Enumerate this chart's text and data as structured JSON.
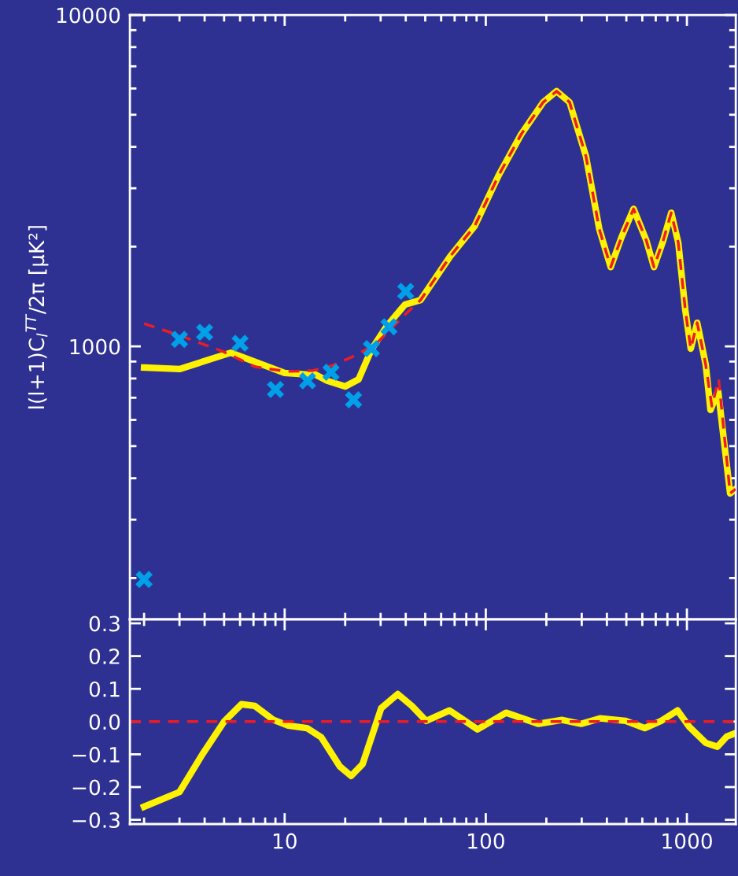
{
  "chart_data": [
    {
      "type": "line",
      "ylabel": "l(l+1)C$_{l}$$^{TT}$/2π [μK²]",
      "log": "xy",
      "xlim": [
        1.7,
        1750
      ],
      "ylim": [
        150,
        10000
      ],
      "xticks": [
        10,
        100,
        1000
      ],
      "yticks": [
        1000,
        10000
      ],
      "tick_labels": "y",
      "grid": false,
      "legend": false,
      "series": [
        {
          "type": "line",
          "color": "#fff200",
          "line_style": "solid",
          "x": [
            2,
            3,
            5.4,
            10,
            13,
            14,
            16.3,
            20,
            23.3,
            27,
            32,
            39.6,
            47.4,
            66.7,
            88,
            116,
            150,
            193,
            225,
            261,
            315,
            367,
            418,
            473,
            543,
            628,
            686,
            763,
            836,
            906,
            982,
            1045,
            1125,
            1240,
            1310,
            1430,
            1640,
            1745
          ],
          "values": [
            863,
            854,
            957,
            831,
            822,
            826,
            787,
            757,
            795,
            978,
            1146,
            1336,
            1380,
            1873,
            2305,
            3286,
            4365,
            5455,
            5890,
            5455,
            3743,
            2255,
            1735,
            2135,
            2600,
            2090,
            1735,
            2090,
            2530,
            2055,
            1285,
            984,
            1178,
            882,
            643,
            733,
            360,
            371
          ]
        },
        {
          "type": "line",
          "color": "#ed1c24",
          "line_style": "dashed",
          "x": [
            2,
            3,
            5,
            7.1,
            10.2,
            13.8,
            17.4,
            22.3,
            28.4,
            34,
            40.6,
            47.4,
            66.7,
            88,
            116,
            150,
            193,
            225,
            261,
            315,
            367,
            418,
            473,
            543,
            628,
            686,
            763,
            836,
            906,
            982,
            1045,
            1125,
            1240,
            1330,
            1440,
            1640,
            1745
          ],
          "values": [
            1171,
            1079,
            962,
            868,
            840,
            845,
            877,
            937,
            1016,
            1134,
            1264,
            1380,
            1873,
            2305,
            3286,
            4365,
            5455,
            5890,
            5455,
            3743,
            2255,
            1735,
            2135,
            2600,
            2090,
            1735,
            2090,
            2530,
            2055,
            1285,
            984,
            1178,
            882,
            660,
            795,
            360,
            371
          ]
        },
        {
          "type": "scatter",
          "color": "#00a0e9",
          "marker": "cross",
          "x": [
            2,
            3,
            4,
            6,
            9,
            13,
            17,
            22,
            27,
            33,
            40
          ],
          "values": [
            198,
            1050,
            1103,
            1022,
            741,
            787,
            835,
            690,
            984,
            1146,
            1466
          ]
        }
      ]
    },
    {
      "type": "line",
      "log": "x",
      "xlim": [
        1.7,
        1750
      ],
      "ylim": [
        -0.313,
        0.312
      ],
      "xticks": [
        10,
        100,
        1000
      ],
      "yticks": [
        {
          "value": -0.3,
          "label": "−0.3"
        },
        {
          "value": -0.2,
          "label": "−0.2"
        },
        {
          "value": -0.1,
          "label": "−0.1"
        },
        {
          "value": 0.0,
          "label": "0.0"
        },
        {
          "value": 0.1,
          "label": "0.1"
        },
        {
          "value": 0.2,
          "label": "0.2"
        },
        {
          "value": 0.3,
          "label": "0.3"
        }
      ],
      "grid": false,
      "legend": false,
      "ref_lines": [
        {
          "axis": "y",
          "value": 0,
          "label": null,
          "color": "#ed1c24",
          "line_style": "dashed"
        }
      ],
      "series": [
        {
          "type": "line",
          "color": "#fff200",
          "line_style": "solid",
          "x": [
            2,
            3,
            3.9,
            5,
            6.1,
            7.1,
            8.8,
            10.4,
            12.9,
            15.2,
            18.8,
            21.4,
            24.4,
            30.2,
            36.5,
            42.9,
            50.5,
            66,
            77.6,
            91,
            126,
            183,
            240,
            298,
            370,
            496,
            617,
            744,
            898,
            1030,
            1240,
            1418,
            1575,
            1745
          ],
          "values": [
            -0.26,
            -0.215,
            -0.1,
            0.0,
            0.053,
            0.048,
            0.005,
            -0.012,
            -0.02,
            -0.048,
            -0.137,
            -0.166,
            -0.13,
            0.041,
            0.084,
            0.048,
            0.002,
            0.034,
            0.005,
            -0.024,
            0.027,
            -0.007,
            0.005,
            -0.007,
            0.01,
            0.002,
            -0.02,
            0.002,
            0.034,
            -0.017,
            -0.065,
            -0.077,
            -0.046,
            -0.035
          ]
        }
      ]
    }
  ]
}
